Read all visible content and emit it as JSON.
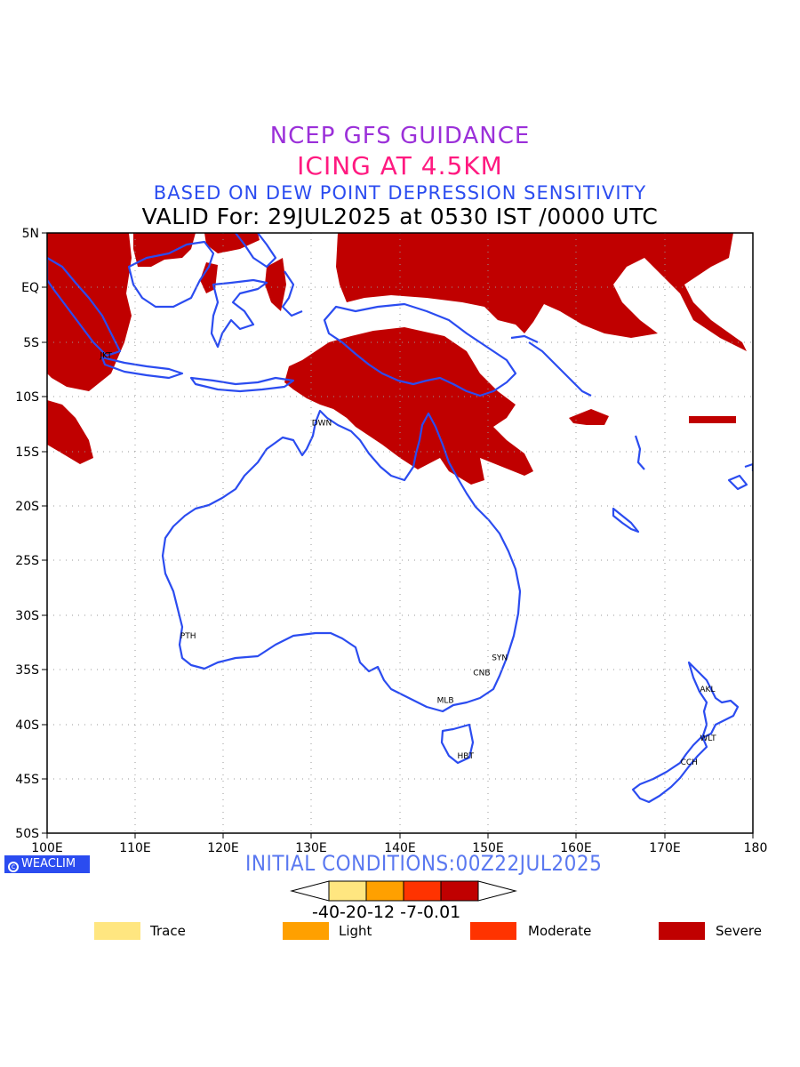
{
  "header": {
    "line1": "NCEP GFS GUIDANCE",
    "line2": "ICING AT 4.5KM",
    "line3": "BASED ON DEW POINT DEPRESSION SENSITIVITY",
    "line4": "VALID For: 29JUL2025 at 0530 IST /0000 UTC"
  },
  "map": {
    "lon_labels": [
      "100E",
      "110E",
      "120E",
      "130E",
      "140E",
      "150E",
      "160E",
      "170E",
      "180"
    ],
    "lat_labels": [
      "5N",
      "EQ",
      "5S",
      "10S",
      "15S",
      "20S",
      "25S",
      "30S",
      "35S",
      "40S",
      "45S",
      "50S"
    ],
    "stations": [
      {
        "code": "JKT",
        "lon": 106.8,
        "lat": -6.2
      },
      {
        "code": "DWN",
        "lon": 130.8,
        "lat": -12.4
      },
      {
        "code": "PTH",
        "lon": 115.9,
        "lat": -31.9
      },
      {
        "code": "SYN",
        "lon": 151.2,
        "lat": -33.9
      },
      {
        "code": "CNB",
        "lon": 149.1,
        "lat": -35.3
      },
      {
        "code": "MLB",
        "lon": 145.0,
        "lat": -37.8
      },
      {
        "code": "HBT",
        "lon": 147.3,
        "lat": -42.9
      },
      {
        "code": "AKL",
        "lon": 174.8,
        "lat": -36.8
      },
      {
        "code": "WLT",
        "lon": 174.8,
        "lat": -41.3
      },
      {
        "code": "CCH",
        "lon": 172.6,
        "lat": -43.5
      }
    ]
  },
  "footer": {
    "logo": "WEACLIM",
    "initial_conditions": "INITIAL CONDITIONS:00Z22JUL2025",
    "colorbar_labels": "-40-20-12 -7-0.01",
    "legend": [
      {
        "label": "Trace",
        "color": "#ffe680"
      },
      {
        "label": "Light",
        "color": "#ffa000"
      },
      {
        "label": "Moderate",
        "color": "#ff3300"
      },
      {
        "label": "Severe",
        "color": "#c00000"
      }
    ]
  },
  "colors": {
    "coast": "#2b4cf0",
    "severe": "#c00000",
    "grid": "#999999"
  }
}
